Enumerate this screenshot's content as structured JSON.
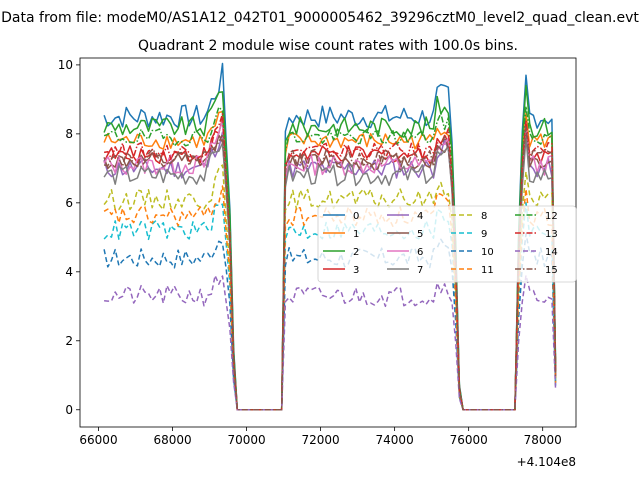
{
  "figure": {
    "suptitle": "Data from file: modeM0/AS1A12_042T01_9000005462_39296cztM0_level2_quad_clean.evt",
    "x_offset_label": "+4.104e8"
  },
  "chart_data": {
    "type": "line",
    "title": "Quadrant 2 module wise count rates with 100.0s bins.",
    "xlabel": "",
    "ylabel": "",
    "x_offset": 410400000,
    "xlim": [
      65500,
      78900
    ],
    "ylim": [
      -0.5,
      10.2
    ],
    "x_ticks": [
      66000,
      68000,
      70000,
      72000,
      74000,
      76000,
      78000
    ],
    "x_tick_labels": [
      "66000",
      "68000",
      "70000",
      "72000",
      "74000",
      "76000",
      "78000"
    ],
    "y_ticks": [
      0,
      2,
      4,
      6,
      8,
      10
    ],
    "y_tick_labels": [
      "0",
      "2",
      "4",
      "6",
      "8",
      "10"
    ],
    "grid": false,
    "legend": {
      "placement": "center-right",
      "columns": 4
    },
    "segments": [
      {
        "start": 66150,
        "end": 69350,
        "step": 100,
        "drop": [
          69450,
          69550,
          69650
        ]
      },
      {
        "start": 71150,
        "end": 75450,
        "step": 100,
        "rise": [
          70950,
          71050
        ],
        "drop": [
          75550,
          75650,
          75750
        ]
      },
      {
        "start": 77550,
        "end": 78250,
        "step": 100,
        "rise": [
          77250,
          77350,
          77450
        ],
        "drop": [
          78350
        ]
      }
    ],
    "gaps": [
      [
        69750,
        70950
      ],
      [
        75850,
        77250
      ]
    ],
    "series": [
      {
        "name": "0",
        "color": "#1f77b4",
        "dash": "solid",
        "level": 8.5,
        "noise": 0.35,
        "peak": 9.7,
        "end": 1.8
      },
      {
        "name": "1",
        "color": "#ff7f0e",
        "dash": "solid",
        "level": 7.8,
        "noise": 0.25,
        "peak": 8.6,
        "end": 1.5
      },
      {
        "name": "2",
        "color": "#2ca02c",
        "dash": "solid",
        "level": 8.2,
        "noise": 0.3,
        "peak": 9.4,
        "end": 1.7
      },
      {
        "name": "3",
        "color": "#d62728",
        "dash": "solid",
        "level": 7.4,
        "noise": 0.25,
        "peak": 8.3,
        "end": 1.5
      },
      {
        "name": "4",
        "color": "#9467bd",
        "dash": "solid",
        "level": 7.0,
        "noise": 0.3,
        "peak": 8.1,
        "end": 1.4
      },
      {
        "name": "5",
        "color": "#8c564b",
        "dash": "solid",
        "level": 7.2,
        "noise": 0.25,
        "peak": 8.0,
        "end": 1.4
      },
      {
        "name": "6",
        "color": "#e377c2",
        "dash": "solid",
        "level": 7.1,
        "noise": 0.3,
        "peak": 8.3,
        "end": 1.4
      },
      {
        "name": "7",
        "color": "#7f7f7f",
        "dash": "solid",
        "level": 6.8,
        "noise": 0.3,
        "peak": 7.9,
        "end": 1.3
      },
      {
        "name": "8",
        "color": "#bcbd22",
        "dash": "dashed",
        "level": 6.1,
        "noise": 0.3,
        "peak": 6.9,
        "end": 1.2
      },
      {
        "name": "9",
        "color": "#17becf",
        "dash": "dashed",
        "level": 5.2,
        "noise": 0.3,
        "peak": 6.0,
        "end": 1.0
      },
      {
        "name": "10",
        "color": "#1f77b4",
        "dash": "dashed",
        "level": 4.4,
        "noise": 0.3,
        "peak": 5.1,
        "end": 0.9
      },
      {
        "name": "11",
        "color": "#ff7f0e",
        "dash": "dashed",
        "level": 5.6,
        "noise": 0.3,
        "peak": 6.4,
        "end": 1.1
      },
      {
        "name": "12",
        "color": "#2ca02c",
        "dash": "dashdot",
        "level": 7.9,
        "noise": 0.25,
        "peak": 8.8,
        "end": 1.6
      },
      {
        "name": "13",
        "color": "#d62728",
        "dash": "dashdot",
        "level": 7.5,
        "noise": 0.25,
        "peak": 8.4,
        "end": 1.5
      },
      {
        "name": "14",
        "color": "#9467bd",
        "dash": "dashed",
        "level": 3.3,
        "noise": 0.3,
        "peak": 3.9,
        "end": 0.8
      },
      {
        "name": "15",
        "color": "#8c564b",
        "dash": "dashdot",
        "level": 7.3,
        "noise": 0.25,
        "peak": 8.2,
        "end": 1.4
      }
    ]
  }
}
